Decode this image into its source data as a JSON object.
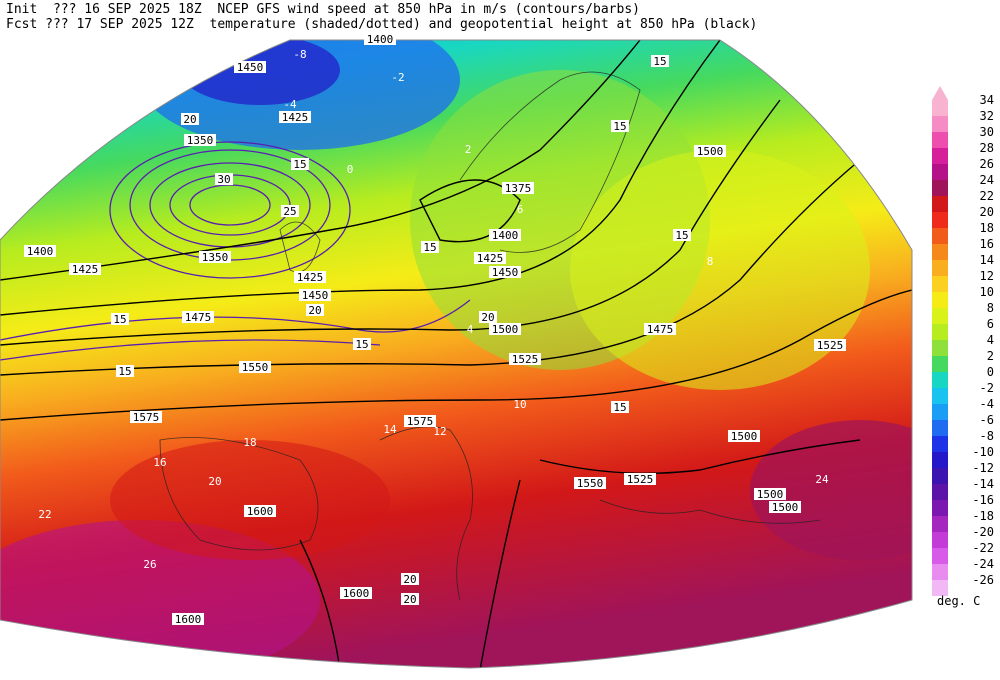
{
  "header": {
    "line1_left": "Init  ??? 16 SEP 2025 18Z",
    "line1_right": "NCEP GFS wind speed at 850 hPa in m/s (contours/barbs)",
    "line2_left": "Fcst ??? 17 SEP 2025 12Z",
    "line2_right": "temperature (shaded/dotted) and geopotential height at 850 hPa (black)"
  },
  "legend": {
    "unit": "deg. C",
    "entries": [
      {
        "label": "34",
        "color": "#f7b3d0"
      },
      {
        "label": "32",
        "color": "#f58cc3"
      },
      {
        "label": "30",
        "color": "#ee4fae"
      },
      {
        "label": "28",
        "color": "#d61f9a"
      },
      {
        "label": "26",
        "color": "#b5128a"
      },
      {
        "label": "24",
        "color": "#a0145a"
      },
      {
        "label": "22",
        "color": "#d21818"
      },
      {
        "label": "20",
        "color": "#ef2c1b"
      },
      {
        "label": "18",
        "color": "#f25c1b"
      },
      {
        "label": "16",
        "color": "#f5891c"
      },
      {
        "label": "14",
        "color": "#f8ae1f"
      },
      {
        "label": "12",
        "color": "#fbd01f"
      },
      {
        "label": "10",
        "color": "#f5ec17"
      },
      {
        "label": "8",
        "color": "#d8f21a"
      },
      {
        "label": "6",
        "color": "#b7ec1f"
      },
      {
        "label": "4",
        "color": "#8fe03a"
      },
      {
        "label": "2",
        "color": "#45d95f"
      },
      {
        "label": "0",
        "color": "#18d7c2"
      },
      {
        "label": "-2",
        "color": "#18c3f0"
      },
      {
        "label": "-4",
        "color": "#1a9ef5"
      },
      {
        "label": "-6",
        "color": "#1f6cf0"
      },
      {
        "label": "-8",
        "color": "#1e33e8"
      },
      {
        "label": "-10",
        "color": "#2418c8"
      },
      {
        "label": "-12",
        "color": "#3c14b0"
      },
      {
        "label": "-14",
        "color": "#5c14a8"
      },
      {
        "label": "-16",
        "color": "#7a18b0"
      },
      {
        "label": "-18",
        "color": "#a427c0"
      },
      {
        "label": "-20",
        "color": "#c43cd8"
      },
      {
        "label": "-22",
        "color": "#d85ae8"
      },
      {
        "label": "-24",
        "color": "#e88cf0"
      },
      {
        "label": "-26",
        "color": "#f2b8f5"
      }
    ]
  },
  "map": {
    "height_labels": [
      "1400",
      "1450",
      "1425",
      "1350",
      "1375",
      "1400",
      "1425",
      "1450",
      "1475",
      "1500",
      "1525",
      "1550",
      "1575",
      "1575",
      "1600",
      "1600",
      "1600",
      "1525",
      "1500",
      "1500",
      "1500",
      "1475",
      "1525",
      "1550",
      "1425",
      "1400",
      "1350",
      "1450",
      "1425",
      "1500"
    ],
    "wind_labels": [
      "20",
      "30",
      "15",
      "15",
      "15",
      "15",
      "15",
      "25",
      "20",
      "15",
      "15",
      "20",
      "15",
      "15",
      "20",
      "20"
    ],
    "temp_labels": [
      "-8",
      "-4",
      "-2",
      "0",
      "2",
      "4",
      "6",
      "8",
      "10",
      "12",
      "14",
      "16",
      "18",
      "20",
      "22",
      "24",
      "26"
    ]
  }
}
